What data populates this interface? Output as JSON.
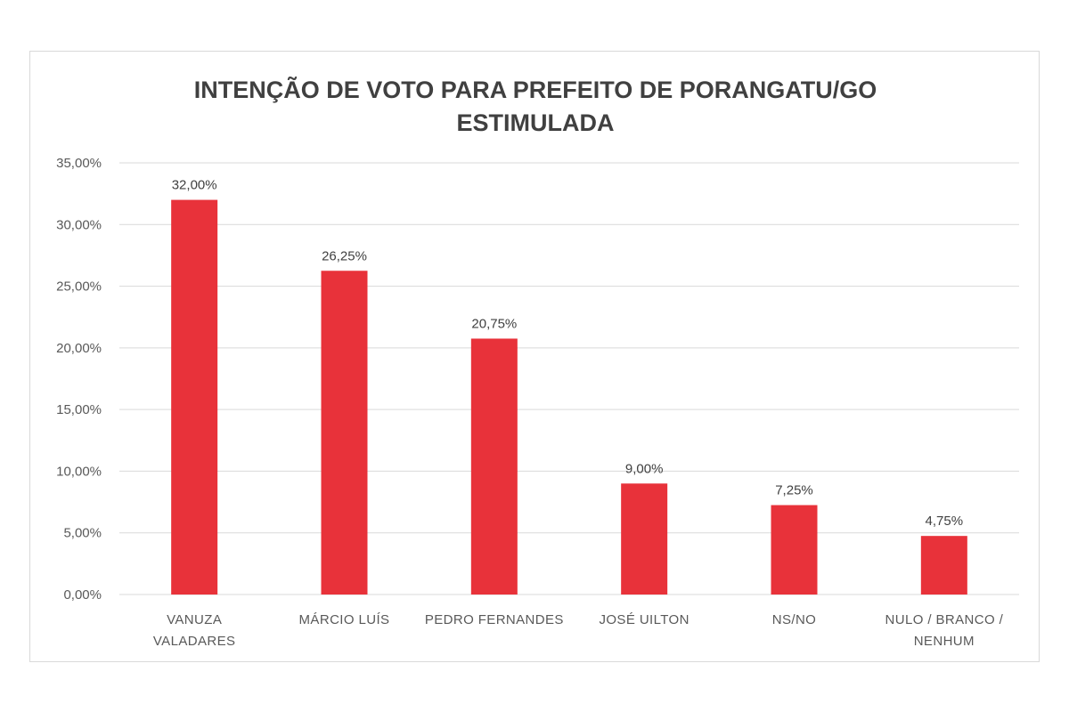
{
  "chart_data": {
    "type": "bar",
    "title": [
      "INTENÇÃO DE VOTO PARA PREFEITO DE PORANGATU/GO",
      "ESTIMULADA"
    ],
    "categories": [
      [
        "VANUZA",
        "VALADARES"
      ],
      [
        "MÁRCIO LUÍS"
      ],
      [
        "PEDRO FERNANDES"
      ],
      [
        "JOSÉ UILTON"
      ],
      [
        "NS/NO"
      ],
      [
        "NULO / BRANCO /",
        "NENHUM"
      ]
    ],
    "values": [
      32.0,
      26.25,
      20.75,
      9.0,
      7.25,
      4.75
    ],
    "data_labels": [
      "32,00%",
      "26,25%",
      "20,75%",
      "9,00%",
      "7,25%",
      "4,75%"
    ],
    "yticks": [
      "0,00%",
      "5,00%",
      "10,00%",
      "15,00%",
      "20,00%",
      "25,00%",
      "30,00%",
      "35,00%"
    ],
    "ylim": [
      0,
      35
    ],
    "ytick_step": 5,
    "grid": true,
    "legend": "none",
    "bar_color": "#e8323a"
  }
}
